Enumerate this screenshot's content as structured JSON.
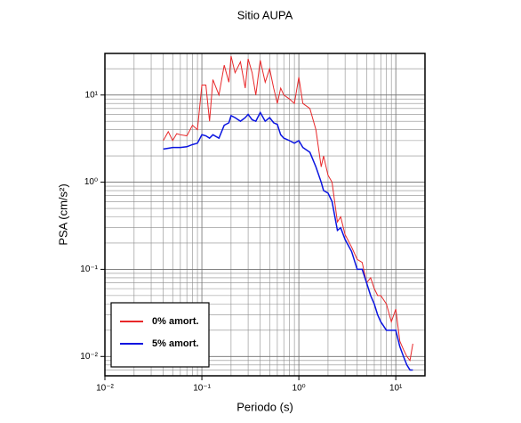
{
  "chart_data": {
    "type": "line",
    "title": "Sitio AUPA",
    "x_label": "Periodo (s)",
    "y_label": "PSA (cm/s²)",
    "log_x": true,
    "log_y": true,
    "grid": "major-minor",
    "legend": "lower left",
    "xlim": [
      0.01,
      20
    ],
    "ylim": [
      0.006,
      30
    ],
    "xticks": [
      {
        "value": 0.01,
        "label": "10⁻²"
      },
      {
        "value": 0.1,
        "label": "10⁻¹"
      },
      {
        "value": 1,
        "label": "10⁰"
      },
      {
        "value": 10,
        "label": "10¹"
      }
    ],
    "yticks": [
      {
        "value": 0.01,
        "label": "10⁻²"
      },
      {
        "value": 0.1,
        "label": "10⁻¹"
      },
      {
        "value": 1,
        "label": "10⁰"
      },
      {
        "value": 10,
        "label": "10¹"
      }
    ],
    "x": [
      0.04,
      0.045,
      0.05,
      0.055,
      0.06,
      0.07,
      0.08,
      0.09,
      0.1,
      0.11,
      0.12,
      0.13,
      0.15,
      0.17,
      0.19,
      0.2,
      0.22,
      0.25,
      0.28,
      0.3,
      0.33,
      0.36,
      0.4,
      0.45,
      0.5,
      0.55,
      0.6,
      0.65,
      0.7,
      0.8,
      0.9,
      1.0,
      1.1,
      1.3,
      1.5,
      1.7,
      1.8,
      2.0,
      2.2,
      2.5,
      2.7,
      3.0,
      3.5,
      4.0,
      4.5,
      5.0,
      5.5,
      6.0,
      6.5,
      7.0,
      8.0,
      9.0,
      10,
      11,
      12,
      13,
      14,
      15
    ],
    "series": [
      {
        "name": "0% amort.",
        "color": "#e8282a",
        "width": 1,
        "values": [
          3.0,
          3.8,
          3.0,
          3.6,
          3.5,
          3.4,
          4.5,
          4.0,
          13,
          13,
          5,
          15,
          10,
          22,
          14,
          28,
          18,
          24,
          12,
          26,
          18,
          10,
          25,
          14,
          20,
          12,
          8,
          12,
          10,
          9,
          8,
          16,
          8,
          7,
          4,
          1.5,
          2.0,
          1.2,
          1.0,
          0.35,
          0.4,
          0.25,
          0.18,
          0.13,
          0.12,
          0.07,
          0.08,
          0.06,
          0.05,
          0.05,
          0.04,
          0.025,
          0.035,
          0.015,
          0.012,
          0.01,
          0.009,
          0.014
        ]
      },
      {
        "name": "5% amort.",
        "color": "#0a14e0",
        "width": 1.5,
        "values": [
          2.4,
          2.45,
          2.5,
          2.5,
          2.5,
          2.55,
          2.7,
          2.8,
          3.5,
          3.4,
          3.2,
          3.5,
          3.2,
          4.5,
          4.8,
          5.8,
          5.5,
          5.0,
          5.5,
          6.0,
          5.2,
          5.0,
          6.3,
          5.0,
          5.5,
          4.8,
          4.6,
          3.5,
          3.2,
          3.0,
          2.8,
          3.0,
          2.5,
          2.2,
          1.5,
          1.0,
          0.8,
          0.75,
          0.6,
          0.28,
          0.3,
          0.22,
          0.16,
          0.1,
          0.1,
          0.07,
          0.05,
          0.04,
          0.03,
          0.025,
          0.02,
          0.02,
          0.02,
          0.013,
          0.01,
          0.008,
          0.007,
          0.007
        ]
      }
    ]
  }
}
